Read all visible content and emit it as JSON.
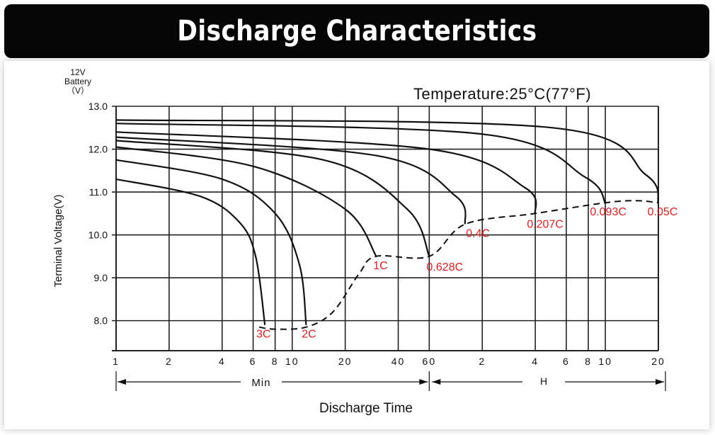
{
  "header": {
    "title": "Discharge Characteristics"
  },
  "chart_data": {
    "type": "line",
    "title": "Temperature:25°C(77°F)",
    "ylabel": "Terminal Voltage(V)",
    "ylabel_top": [
      "12V",
      "Battery",
      "（V）"
    ],
    "xlabel": "Discharge Time",
    "x_unit_left": "Min",
    "x_unit_right": "H",
    "ylim": [
      7.3,
      13.0
    ],
    "y_ticks": [
      "13.0",
      "12.0",
      "11.0",
      "10.0",
      "9.0",
      "8.0"
    ],
    "x_ticks": [
      "1",
      "2",
      "4",
      "6",
      "8",
      "10",
      "20",
      "40",
      "60",
      "2",
      "4",
      "6",
      "8",
      "10",
      "20"
    ],
    "x_scale": "log (minutes)",
    "grid": true,
    "colors": {
      "curve": "#111111",
      "label": "#d42222",
      "grid": "#222222"
    },
    "series": [
      {
        "name": "3C",
        "values": [
          [
            1,
            11.3
          ],
          [
            3,
            10.9
          ],
          [
            5,
            10.3
          ],
          [
            6.2,
            9.5
          ],
          [
            7,
            7.9
          ]
        ]
      },
      {
        "name": "2C",
        "values": [
          [
            1,
            11.75
          ],
          [
            4,
            11.3
          ],
          [
            8,
            10.5
          ],
          [
            11,
            9.3
          ],
          [
            12,
            7.9
          ]
        ]
      },
      {
        "name": "1C",
        "values": [
          [
            1,
            12.05
          ],
          [
            6,
            11.6
          ],
          [
            20,
            10.6
          ],
          [
            30,
            9.5
          ]
        ]
      },
      {
        "name": "0.628C",
        "values": [
          [
            1,
            12.2
          ],
          [
            15,
            11.75
          ],
          [
            45,
            10.6
          ],
          [
            60,
            9.5
          ]
        ]
      },
      {
        "name": "0.4C",
        "values": [
          [
            1,
            12.28
          ],
          [
            30,
            11.85
          ],
          [
            85,
            10.9
          ],
          [
            96,
            10.25
          ]
        ]
      },
      {
        "name": "0.207C",
        "values": [
          [
            1,
            12.4
          ],
          [
            60,
            12.0
          ],
          [
            210,
            11.1
          ],
          [
            240,
            10.5
          ]
        ]
      },
      {
        "name": "0.093C",
        "values": [
          [
            1,
            12.6
          ],
          [
            120,
            12.35
          ],
          [
            460,
            11.35
          ],
          [
            600,
            10.75
          ]
        ]
      },
      {
        "name": "0.05C",
        "values": [
          [
            1,
            12.68
          ],
          [
            300,
            12.5
          ],
          [
            1020,
            11.4
          ],
          [
            1200,
            10.75
          ]
        ]
      }
    ],
    "cutoff_line": {
      "style": "dashed",
      "values": [
        [
          6.5,
          7.85
        ],
        [
          8,
          7.8
        ],
        [
          12,
          7.85
        ],
        [
          17,
          8.2
        ],
        [
          24,
          9.1
        ],
        [
          30,
          9.5
        ],
        [
          60,
          9.5
        ],
        [
          96,
          10.25
        ],
        [
          240,
          10.5
        ],
        [
          600,
          10.75
        ],
        [
          900,
          10.8
        ],
        [
          1200,
          10.75
        ]
      ]
    }
  }
}
